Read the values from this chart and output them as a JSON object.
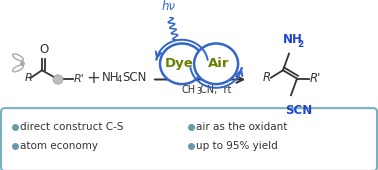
{
  "bg_color": "#ffffff",
  "box_color": "#7ab0be",
  "box_text_color": "#6a9aaa",
  "bullet_items_left": [
    "direct construct C-S",
    "atom economy"
  ],
  "bullet_items_right": [
    "air as the oxidant",
    "up to 95% yield"
  ],
  "dye_color": "#6b8000",
  "air_color": "#6b8000",
  "circle_edge_color": "#3366cc",
  "arrow_color": "#333333",
  "hv_color": "#3366cc",
  "blue_text_color": "#2244cc",
  "dye_label": "Dye",
  "air_label": "Air",
  "hv_label": "hν"
}
